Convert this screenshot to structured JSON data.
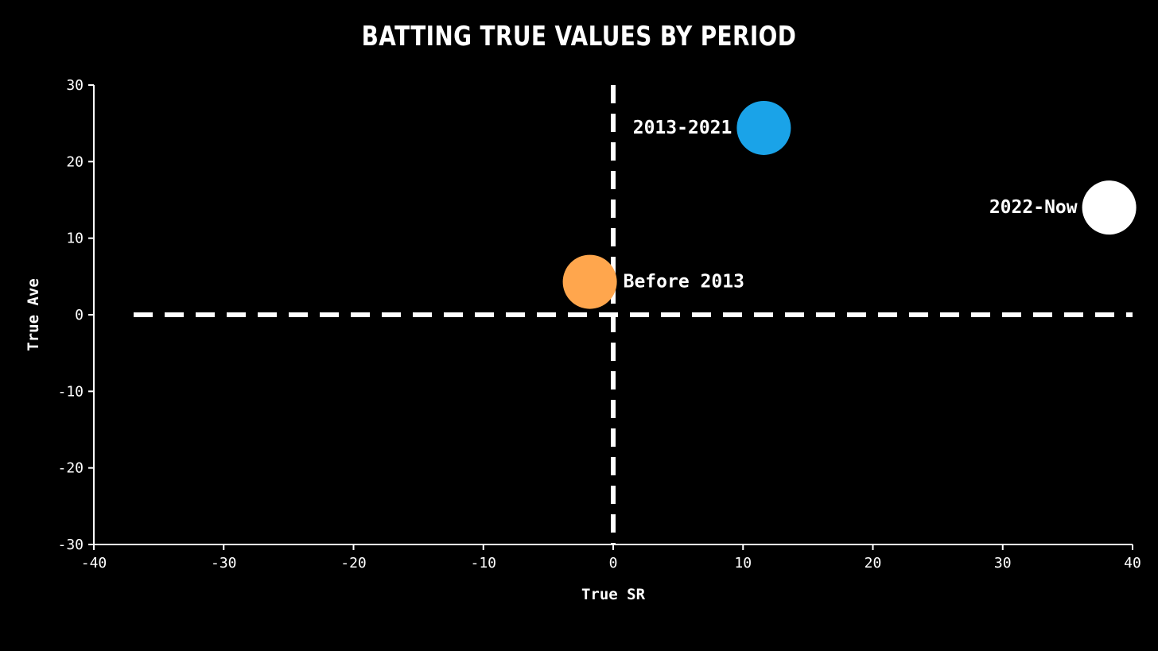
{
  "chart_data": {
    "type": "scatter",
    "title": "Batting True Values by Period",
    "xlabel": "True SR",
    "ylabel": "True Ave",
    "xlim": [
      -40,
      40
    ],
    "ylim": [
      -30,
      30
    ],
    "xticks": [
      -40,
      -30,
      -20,
      -10,
      0,
      10,
      20,
      30,
      40
    ],
    "yticks": [
      -30,
      -20,
      -10,
      0,
      10,
      20,
      30
    ],
    "reference_lines": {
      "x": 0,
      "y": 0,
      "style": "dashed",
      "color": "#ffffff"
    },
    "grid": false,
    "points": [
      {
        "label": "Before 2013",
        "x": -1.8,
        "y": 4.3,
        "color": "#ffa64d",
        "label_side": "right"
      },
      {
        "label": "2013-2021",
        "x": 11.6,
        "y": 24.4,
        "color": "#1aa3e8",
        "label_side": "left"
      },
      {
        "label": "2022-Now",
        "x": 38.2,
        "y": 14.0,
        "color": "#ffffff",
        "label_side": "left"
      }
    ]
  }
}
